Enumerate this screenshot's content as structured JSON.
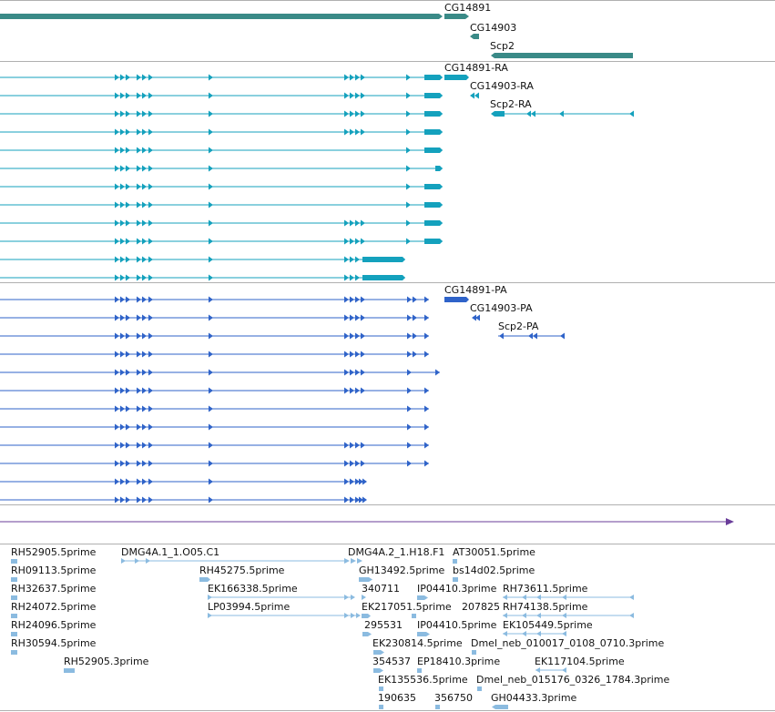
{
  "colors": {
    "gene": "#3a8a87",
    "flybase_transcript": "#14a1bd",
    "protein": "#2f63c9",
    "scaffold": "#6a3d9a",
    "est": "#8bbbe0",
    "divider": "#b0b0b0",
    "label": "#111111"
  },
  "tracks": {
    "genes": {
      "labels": [
        "CG14891",
        "CG14903",
        "Scp2"
      ]
    },
    "transcripts": {
      "labels": [
        "CG14891-RA",
        "CG14903-RA",
        "Scp2-RA"
      ]
    },
    "proteins": {
      "labels": [
        "CG14891-PA",
        "CG14903-PA",
        "Scp2-PA"
      ]
    },
    "est": {
      "labels": [
        "RH52905.5prime",
        "DMG4A.1_1.O05.C1",
        "DMG4A.2_1.H18.F1",
        "AT30051.5prime",
        "RH09113.5prime",
        "RH45275.5prime",
        "GH13492.5prime",
        "bs14d02.5prime",
        "RH32637.5prime",
        "EK166338.5prime",
        "340711",
        "IP04410.3prime",
        "RH73611.5prime",
        "RH24072.5prime",
        "LP03994.5prime",
        "EK217051.5prime",
        "207825",
        "RH74138.5prime",
        "RH24096.5prime",
        "295531",
        "IP04410.5prime",
        "EK105449.5prime",
        "RH30594.5prime",
        "EK230814.5prime",
        "Dmel_neb_010017_0108_0710.3prime",
        "RH52905.3prime",
        "354537",
        "EP18410.3prime",
        "EK117104.5prime",
        "EK135536.5prime",
        "Dmel_neb_015176_0326_1784.3prime",
        "190635",
        "356750",
        "GH04433.3prime"
      ]
    }
  }
}
